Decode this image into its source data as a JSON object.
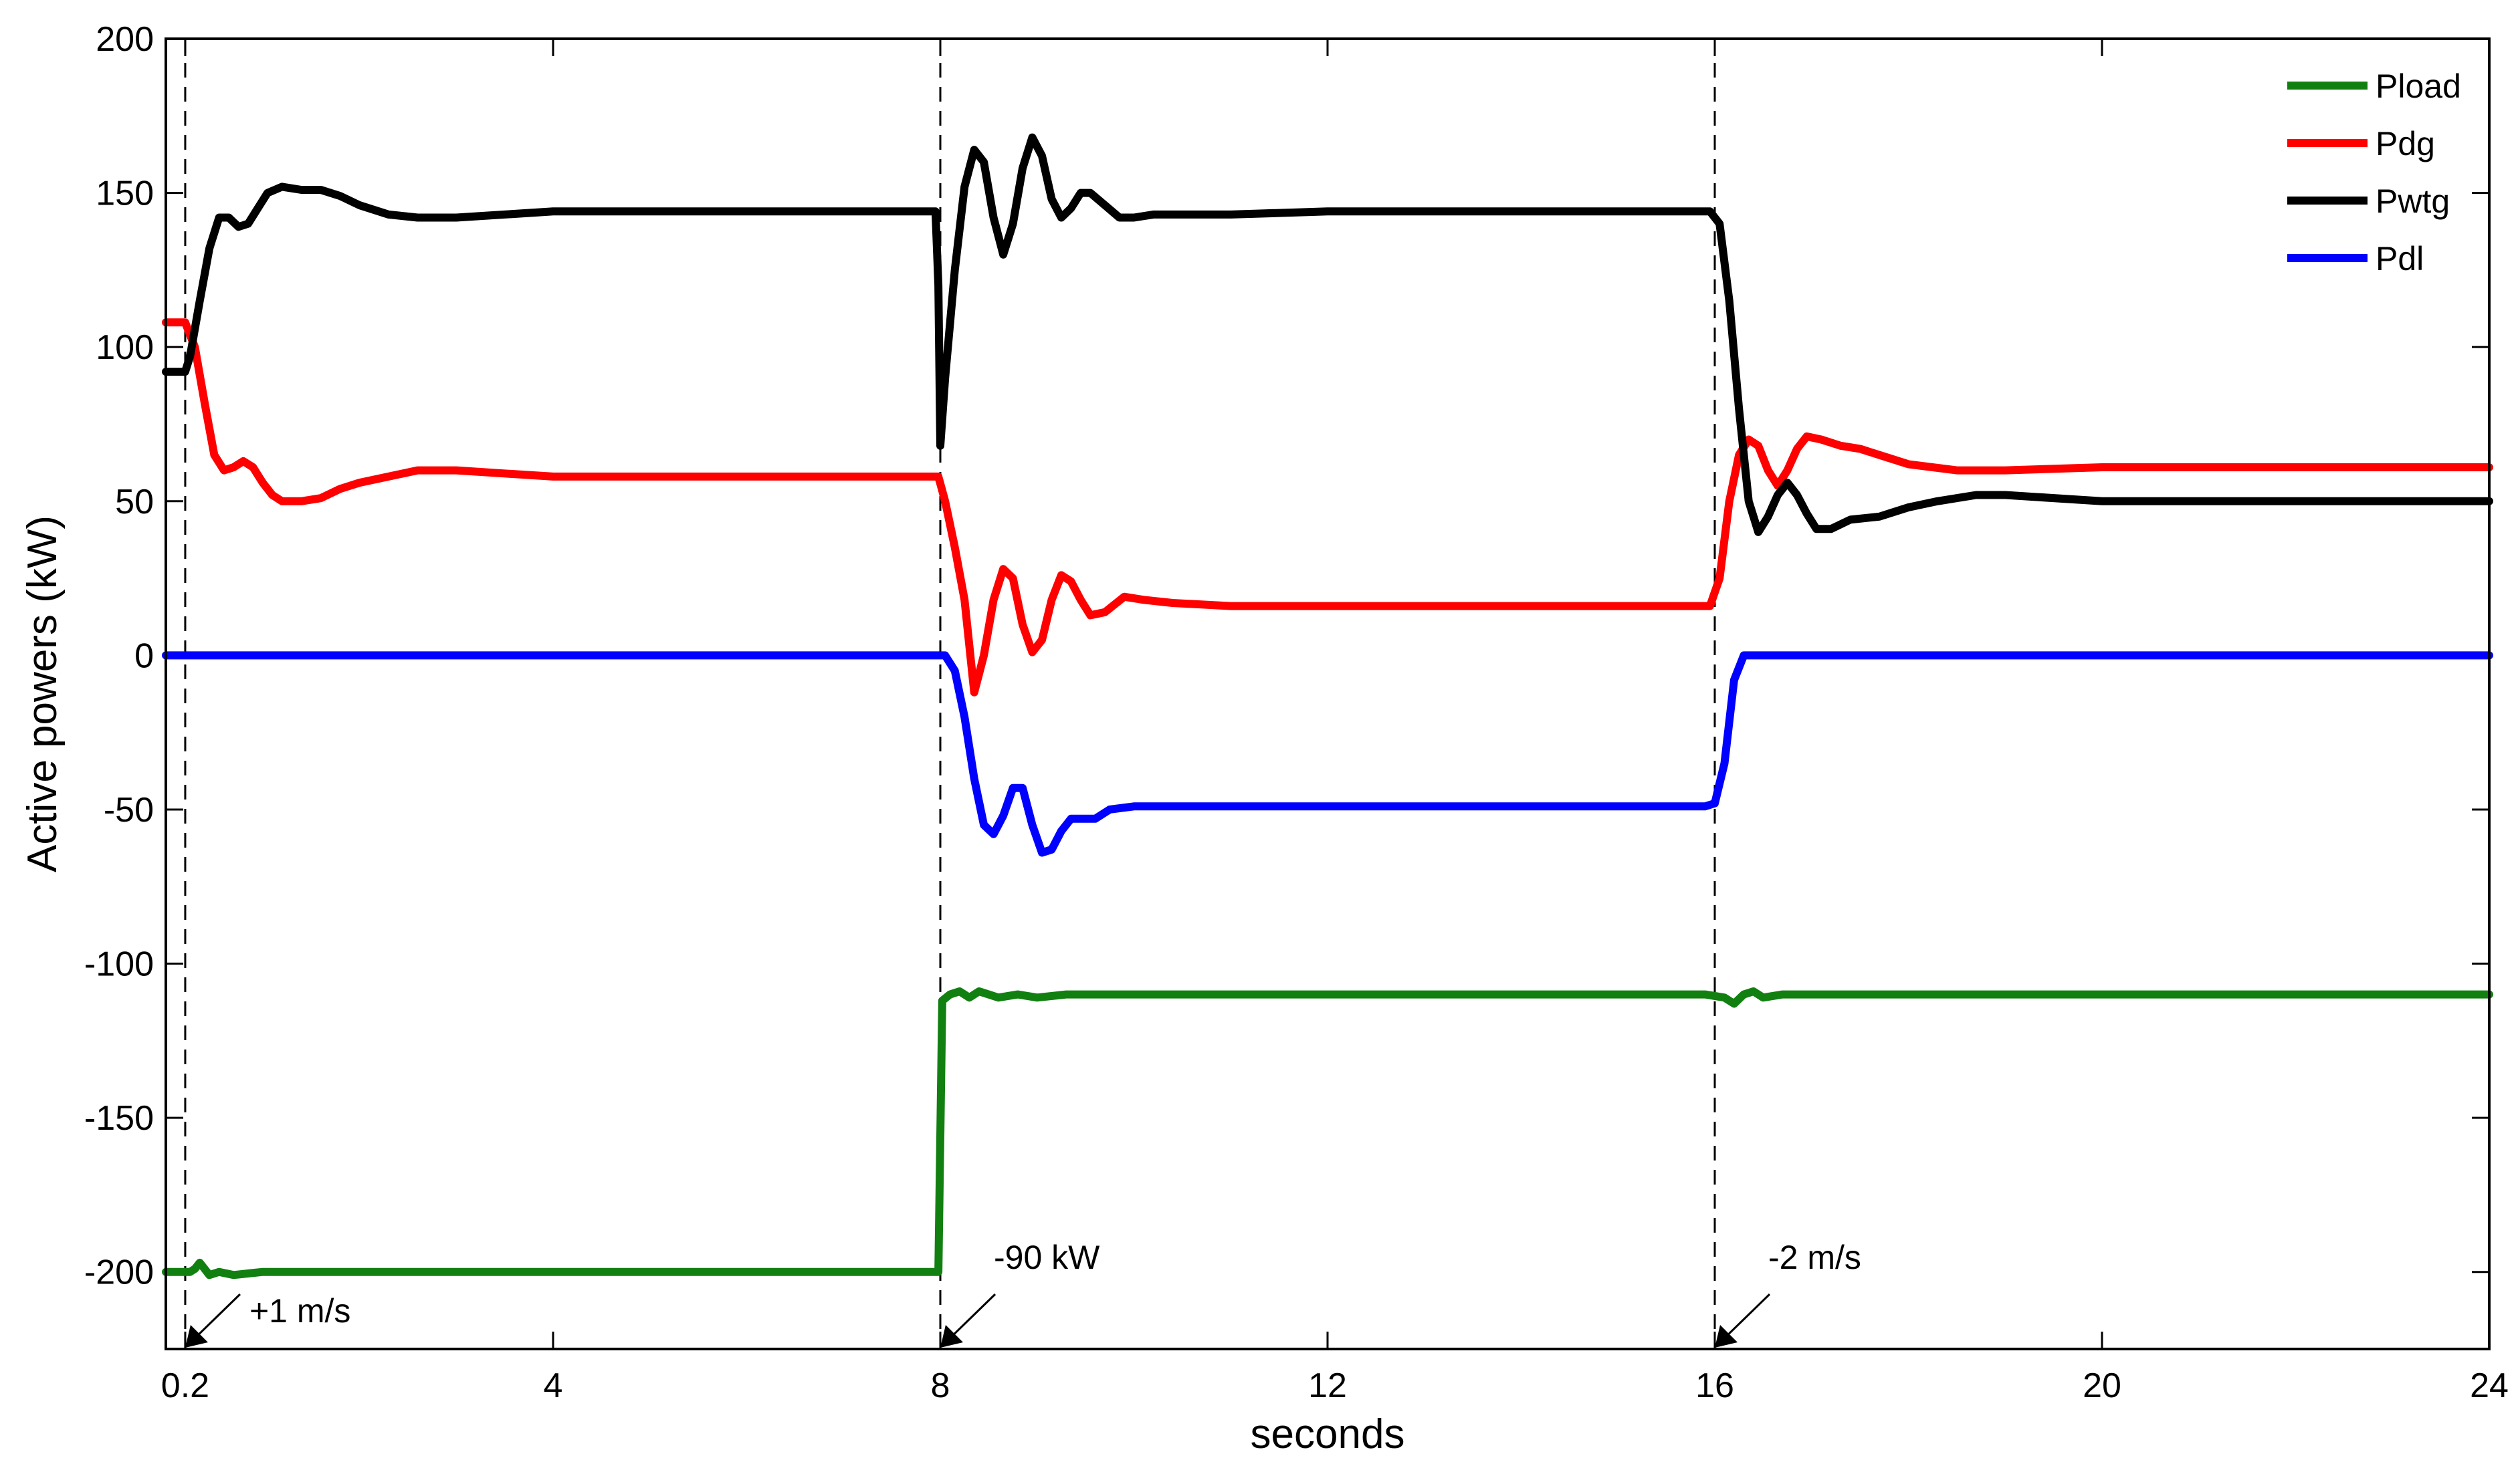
{
  "chart_data": {
    "type": "line",
    "title": "",
    "xlabel": "seconds",
    "ylabel": "Active powers (kW)",
    "xlim": [
      0,
      24
    ],
    "ylim": [
      -225,
      200
    ],
    "x_ticks": [
      0.2,
      4,
      8,
      12,
      16,
      20,
      24
    ],
    "x_tick_labels": [
      "0.2",
      "4",
      "8",
      "12",
      "16",
      "20",
      "24"
    ],
    "y_ticks": [
      200,
      150,
      100,
      50,
      0,
      -50,
      -100,
      -150,
      -200
    ],
    "y_tick_labels": [
      "200",
      "150",
      "100",
      "50",
      "0",
      "-50",
      "-100",
      "-150",
      "-200"
    ],
    "grid": false,
    "legend_position": "top-right",
    "colors": {
      "axes": "#000000",
      "event_lines": "#000000"
    },
    "event_lines": [
      {
        "x": 0.2,
        "label": "+1 m/s",
        "arrow_to_y": -225
      },
      {
        "x": 8,
        "label": "-90 kW",
        "arrow_to_y": -225
      },
      {
        "x": 16,
        "label": "-2 m/s",
        "arrow_to_y": -225
      }
    ],
    "series": [
      {
        "name": "Pload",
        "color": "#118011",
        "points": [
          [
            0,
            -200
          ],
          [
            0.2,
            -200
          ],
          [
            0.25,
            -200
          ],
          [
            0.3,
            -199
          ],
          [
            0.35,
            -197
          ],
          [
            0.4,
            -199
          ],
          [
            0.45,
            -201
          ],
          [
            0.55,
            -200
          ],
          [
            0.7,
            -201
          ],
          [
            1,
            -200
          ],
          [
            2,
            -200
          ],
          [
            4,
            -200
          ],
          [
            6,
            -200
          ],
          [
            7.98,
            -200
          ],
          [
            8.02,
            -112
          ],
          [
            8.1,
            -110
          ],
          [
            8.2,
            -109
          ],
          [
            8.3,
            -111
          ],
          [
            8.4,
            -109
          ],
          [
            8.5,
            -110
          ],
          [
            8.6,
            -111
          ],
          [
            8.8,
            -110
          ],
          [
            9,
            -111
          ],
          [
            9.3,
            -110
          ],
          [
            10,
            -110
          ],
          [
            12,
            -110
          ],
          [
            14,
            -110
          ],
          [
            15.9,
            -110
          ],
          [
            16.1,
            -111
          ],
          [
            16.2,
            -113
          ],
          [
            16.3,
            -110
          ],
          [
            16.4,
            -109
          ],
          [
            16.5,
            -111
          ],
          [
            16.7,
            -110
          ],
          [
            17,
            -110
          ],
          [
            18,
            -110
          ],
          [
            20,
            -110
          ],
          [
            24,
            -110
          ]
        ]
      },
      {
        "name": "Pdg",
        "color": "#ff0000",
        "points": [
          [
            0,
            108
          ],
          [
            0.2,
            108
          ],
          [
            0.3,
            100
          ],
          [
            0.4,
            82
          ],
          [
            0.5,
            65
          ],
          [
            0.6,
            60
          ],
          [
            0.7,
            61
          ],
          [
            0.8,
            63
          ],
          [
            0.9,
            61
          ],
          [
            1,
            56
          ],
          [
            1.1,
            52
          ],
          [
            1.2,
            50
          ],
          [
            1.4,
            50
          ],
          [
            1.6,
            51
          ],
          [
            1.8,
            54
          ],
          [
            2,
            56
          ],
          [
            2.3,
            58
          ],
          [
            2.6,
            60
          ],
          [
            3,
            60
          ],
          [
            3.5,
            59
          ],
          [
            4,
            58
          ],
          [
            5,
            58
          ],
          [
            6,
            58
          ],
          [
            7.98,
            58
          ],
          [
            8.05,
            50
          ],
          [
            8.15,
            35
          ],
          [
            8.25,
            18
          ],
          [
            8.35,
            -12
          ],
          [
            8.45,
            0
          ],
          [
            8.55,
            18
          ],
          [
            8.65,
            28
          ],
          [
            8.75,
            25
          ],
          [
            8.85,
            10
          ],
          [
            8.95,
            1
          ],
          [
            9.05,
            5
          ],
          [
            9.15,
            18
          ],
          [
            9.25,
            26
          ],
          [
            9.35,
            24
          ],
          [
            9.45,
            18
          ],
          [
            9.55,
            13
          ],
          [
            9.7,
            14
          ],
          [
            9.9,
            19
          ],
          [
            10.1,
            18
          ],
          [
            10.4,
            17
          ],
          [
            11,
            16
          ],
          [
            12,
            16
          ],
          [
            13,
            16
          ],
          [
            14,
            16
          ],
          [
            15,
            16
          ],
          [
            15.95,
            16
          ],
          [
            16.05,
            25
          ],
          [
            16.15,
            50
          ],
          [
            16.25,
            65
          ],
          [
            16.35,
            70
          ],
          [
            16.45,
            68
          ],
          [
            16.55,
            60
          ],
          [
            16.65,
            55
          ],
          [
            16.75,
            60
          ],
          [
            16.85,
            67
          ],
          [
            16.95,
            71
          ],
          [
            17.1,
            70
          ],
          [
            17.3,
            68
          ],
          [
            17.5,
            67
          ],
          [
            17.7,
            65
          ],
          [
            18,
            62
          ],
          [
            18.5,
            60
          ],
          [
            19,
            60
          ],
          [
            20,
            61
          ],
          [
            22,
            61
          ],
          [
            24,
            61
          ]
        ]
      },
      {
        "name": "Pwtg",
        "color": "#000000",
        "points": [
          [
            0,
            92
          ],
          [
            0.2,
            92
          ],
          [
            0.25,
            97
          ],
          [
            0.35,
            115
          ],
          [
            0.45,
            132
          ],
          [
            0.55,
            142
          ],
          [
            0.65,
            142
          ],
          [
            0.75,
            139
          ],
          [
            0.85,
            140
          ],
          [
            0.95,
            145
          ],
          [
            1.05,
            150
          ],
          [
            1.2,
            152
          ],
          [
            1.4,
            151
          ],
          [
            1.6,
            151
          ],
          [
            1.8,
            149
          ],
          [
            2,
            146
          ],
          [
            2.3,
            143
          ],
          [
            2.6,
            142
          ],
          [
            3,
            142
          ],
          [
            3.5,
            143
          ],
          [
            4,
            144
          ],
          [
            5,
            144
          ],
          [
            6,
            144
          ],
          [
            7.95,
            144
          ],
          [
            7.98,
            120
          ],
          [
            8.0,
            68
          ],
          [
            8.05,
            90
          ],
          [
            8.15,
            125
          ],
          [
            8.25,
            152
          ],
          [
            8.35,
            164
          ],
          [
            8.45,
            160
          ],
          [
            8.55,
            142
          ],
          [
            8.65,
            130
          ],
          [
            8.75,
            140
          ],
          [
            8.85,
            158
          ],
          [
            8.95,
            168
          ],
          [
            9.05,
            162
          ],
          [
            9.15,
            148
          ],
          [
            9.25,
            142
          ],
          [
            9.35,
            145
          ],
          [
            9.45,
            150
          ],
          [
            9.55,
            150
          ],
          [
            9.7,
            146
          ],
          [
            9.85,
            142
          ],
          [
            10,
            142
          ],
          [
            10.2,
            143
          ],
          [
            11,
            143
          ],
          [
            12,
            144
          ],
          [
            14,
            144
          ],
          [
            15.95,
            144
          ],
          [
            16.05,
            140
          ],
          [
            16.15,
            115
          ],
          [
            16.25,
            80
          ],
          [
            16.35,
            50
          ],
          [
            16.45,
            40
          ],
          [
            16.55,
            45
          ],
          [
            16.65,
            52
          ],
          [
            16.75,
            56
          ],
          [
            16.85,
            52
          ],
          [
            16.95,
            46
          ],
          [
            17.05,
            41
          ],
          [
            17.2,
            41
          ],
          [
            17.4,
            44
          ],
          [
            17.7,
            45
          ],
          [
            18,
            48
          ],
          [
            18.3,
            50
          ],
          [
            18.7,
            52
          ],
          [
            19,
            52
          ],
          [
            20,
            50
          ],
          [
            22,
            50
          ],
          [
            24,
            50
          ]
        ]
      },
      {
        "name": "Pdl",
        "color": "#0000ff",
        "points": [
          [
            0,
            0
          ],
          [
            7.95,
            0
          ],
          [
            8.05,
            0
          ],
          [
            8.15,
            -5
          ],
          [
            8.25,
            -20
          ],
          [
            8.35,
            -40
          ],
          [
            8.45,
            -55
          ],
          [
            8.55,
            -58
          ],
          [
            8.65,
            -52
          ],
          [
            8.75,
            -43
          ],
          [
            8.85,
            -43
          ],
          [
            8.95,
            -55
          ],
          [
            9.05,
            -64
          ],
          [
            9.15,
            -63
          ],
          [
            9.25,
            -57
          ],
          [
            9.35,
            -53
          ],
          [
            9.6,
            -53
          ],
          [
            9.75,
            -50
          ],
          [
            10,
            -49
          ],
          [
            12,
            -49
          ],
          [
            14,
            -49
          ],
          [
            15.9,
            -49
          ],
          [
            16.0,
            -48
          ],
          [
            16.1,
            -35
          ],
          [
            16.2,
            -8
          ],
          [
            16.3,
            0
          ],
          [
            16.4,
            0
          ],
          [
            20,
            0
          ],
          [
            24,
            0
          ]
        ]
      }
    ]
  }
}
